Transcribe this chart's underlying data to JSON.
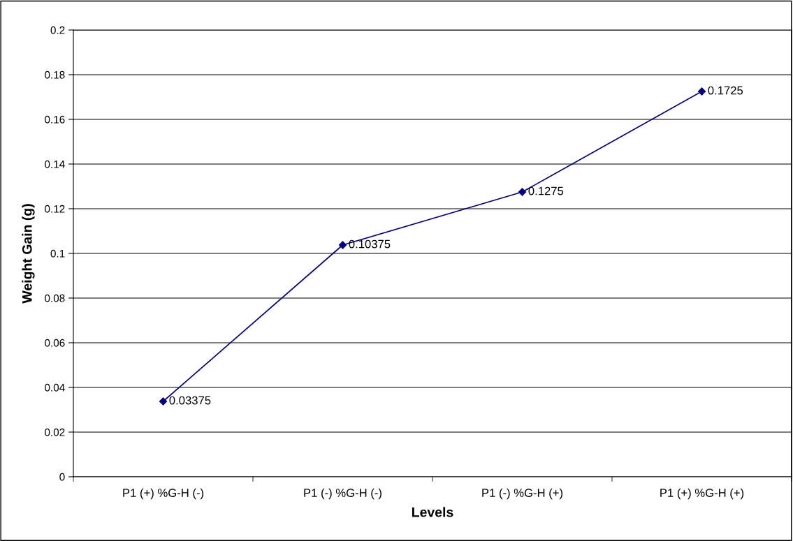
{
  "chart_data": {
    "type": "line",
    "xlabel": "Levels",
    "ylabel": "Weight Gain (g)",
    "categories": [
      "P1 (+) %G-H (-)",
      "P1 (-) %G-H (-)",
      "P1 (-) %G-H (+)",
      "P1 (+) %G-H (+)"
    ],
    "series": [
      {
        "color": "#000080",
        "values": [
          0.03375,
          0.10375,
          0.1275,
          0.1725
        ]
      }
    ],
    "ylim": [
      0,
      0.2
    ],
    "yticks": [
      0,
      0.02,
      0.04,
      0.06,
      0.08,
      0.1,
      0.12,
      0.14,
      0.16,
      0.18,
      0.2
    ],
    "grid": "y",
    "marker": "diamond",
    "line_style": "solid",
    "data_labels": true
  }
}
